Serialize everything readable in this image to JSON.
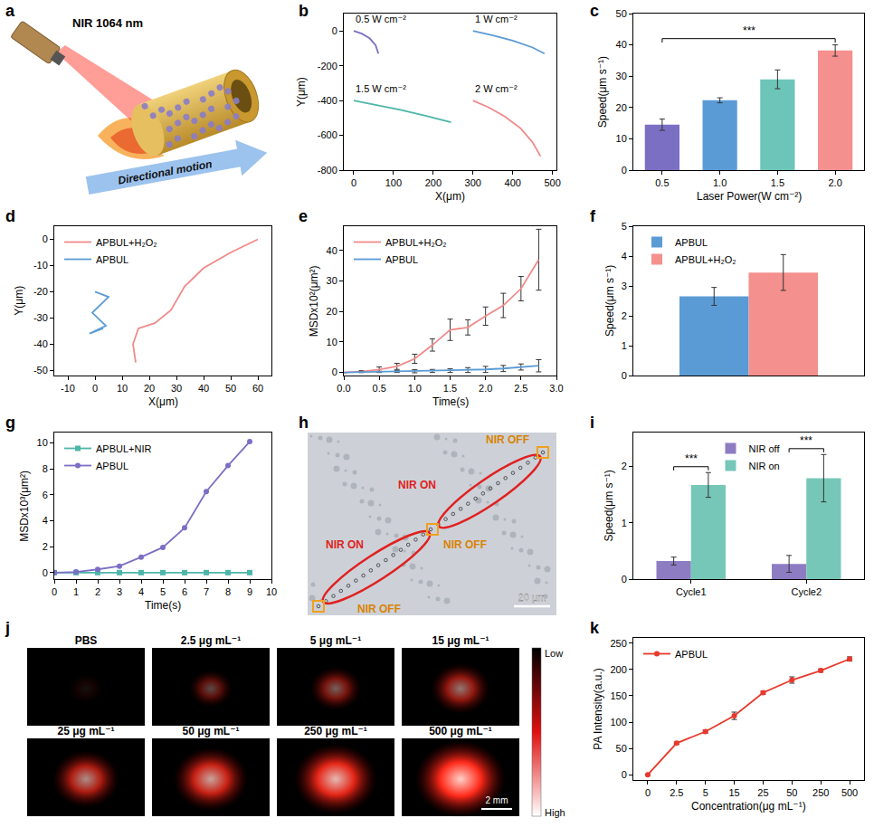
{
  "diagrams": {
    "a": {
      "panel": "a",
      "laser_label": "NIR 1064 nm",
      "arrow_label": "Directional motion"
    },
    "h": {
      "panel": "h",
      "segments": [
        "NIR OFF",
        "NIR ON",
        "NIR OFF",
        "NIR ON",
        "NIR OFF"
      ],
      "scale_bar": "20 μm"
    },
    "j": {
      "panel": "j",
      "images": [
        "PBS",
        "2.5 μg mL⁻¹",
        "5 μg mL⁻¹",
        "15 μg mL⁻¹",
        "25 μg mL⁻¹",
        "50 μg mL⁻¹",
        "250 μg mL⁻¹",
        "500 μg mL⁻¹"
      ],
      "colorbar": [
        "Low",
        "High"
      ],
      "scale_bar": "2 mm"
    }
  },
  "chart_data": [
    {
      "panel": "b",
      "type": "line",
      "x_label": "X(μm)",
      "y_label": "Y(μm)",
      "xlim": [
        -25,
        510
      ],
      "xticks": [
        0,
        100,
        200,
        300,
        400,
        500
      ],
      "ylim": [
        -800,
        100
      ],
      "yticks": [
        -800,
        -600,
        -400,
        -200,
        0
      ],
      "grid": false,
      "series": [
        {
          "name": "0.5 W cm⁻²",
          "color": "#7b6fc4",
          "x": [
            0,
            20,
            40,
            55,
            62
          ],
          "values": [
            0,
            -15,
            -42,
            -82,
            -130
          ]
        },
        {
          "name": "1 W cm⁻²",
          "color": "#5b9bd5",
          "x": [
            300,
            350,
            400,
            450,
            480
          ],
          "values": [
            0,
            -25,
            -55,
            -95,
            -130
          ]
        },
        {
          "name": "1.5 W cm⁻²",
          "color": "#4db6a8",
          "x": [
            0,
            60,
            120,
            180,
            245
          ],
          "values": [
            -400,
            -428,
            -455,
            -487,
            -525
          ]
        },
        {
          "name": "2 W cm⁻²",
          "color": "#f08a8a",
          "x": [
            300,
            340,
            380,
            420,
            450,
            470
          ],
          "values": [
            -400,
            -440,
            -492,
            -560,
            -640,
            -720
          ]
        }
      ]
    },
    {
      "panel": "c",
      "type": "bar",
      "x_label": "Laser Power(W cm⁻²)",
      "y_label": "Speed(μm s⁻¹)",
      "categories": [
        "0.5",
        "1.0",
        "1.5",
        "2.0"
      ],
      "values": [
        14.5,
        22.3,
        29.0,
        38.2
      ],
      "errors": [
        1.8,
        0.8,
        3.0,
        1.8
      ],
      "colors": [
        "#7b6fc4",
        "#5b9bd5",
        "#6cc5b8",
        "#f4908e"
      ],
      "ylim": [
        0,
        50
      ],
      "yticks": [
        0,
        10,
        20,
        30,
        40,
        50
      ],
      "grid": false,
      "annotations": [
        {
          "text": "***",
          "from": "0.5",
          "to": "2.0"
        }
      ]
    },
    {
      "panel": "d",
      "type": "line",
      "x_label": "X(μm)",
      "y_label": "Y(μm)",
      "xlim": [
        -15,
        65
      ],
      "xticks": [
        -10,
        0,
        10,
        20,
        30,
        40,
        50,
        60
      ],
      "ylim": [
        -52,
        5
      ],
      "yticks": [
        -50,
        -40,
        -30,
        -20,
        -10,
        0
      ],
      "grid": false,
      "legend": "upper left",
      "series": [
        {
          "name": "APBUL+H₂O₂",
          "color": "#f08a8a",
          "x": [
            60,
            50,
            40,
            33,
            28,
            22,
            16,
            14,
            15
          ],
          "values": [
            0,
            -5,
            -11,
            -18,
            -27,
            -32,
            -34,
            -40,
            -47
          ]
        },
        {
          "name": "APBUL",
          "color": "#5b9bd5",
          "x": [
            0,
            5,
            -1,
            4,
            -2,
            3
          ],
          "values": [
            -20,
            -22,
            -28,
            -33,
            -36,
            -34
          ]
        }
      ]
    },
    {
      "panel": "e",
      "type": "line",
      "x_label": "Time(s)",
      "y_label": "MSDx10²(μm²)",
      "x": [
        0,
        0.25,
        0.5,
        0.75,
        1.0,
        1.25,
        1.5,
        1.75,
        2.0,
        2.25,
        2.5,
        2.75
      ],
      "xlim": [
        0,
        3
      ],
      "xticks": [
        {
          "value": 0,
          "label": "0.0"
        },
        0.5,
        {
          "value": 1,
          "label": "1.0"
        },
        1.5,
        {
          "value": 2,
          "label": "2.0"
        },
        2.5,
        {
          "value": 3,
          "label": "3.0"
        }
      ],
      "ylim": [
        -1,
        48
      ],
      "yticks": [
        0,
        10,
        20,
        30,
        40
      ],
      "grid": false,
      "legend": "upper left",
      "series": [
        {
          "name": "APBUL+H₂O₂",
          "color": "#f08a8a",
          "values": [
            0,
            0.3,
            1.0,
            2.0,
            4.5,
            9.0,
            14.0,
            14.8,
            18.5,
            22.0,
            27.5,
            37.0
          ],
          "errors": [
            0,
            0.3,
            0.8,
            1.0,
            1.5,
            2.0,
            3.5,
            2.5,
            3.0,
            4.0,
            4.0,
            10.0
          ]
        },
        {
          "name": "APBUL",
          "color": "#5b9bd5",
          "values": [
            0,
            0.1,
            0.2,
            0.3,
            0.4,
            0.5,
            0.6,
            0.8,
            1.0,
            1.3,
            1.8,
            2.2
          ],
          "errors": [
            0,
            0.1,
            0.2,
            0.3,
            0.5,
            0.5,
            0.6,
            0.8,
            1.0,
            1.0,
            1.0,
            2.0
          ]
        }
      ]
    },
    {
      "panel": "f",
      "type": "bar",
      "y_label": "Speed(μm s⁻¹)",
      "ylim": [
        0,
        5
      ],
      "yticks": [
        0,
        1,
        2,
        3,
        4,
        5
      ],
      "grid": false,
      "tick_labels": "y",
      "legend": "upper left",
      "series": [
        {
          "name": "APBUL",
          "color": "#5b9bd5",
          "values": [
            2.65
          ],
          "errors": [
            0.3
          ]
        },
        {
          "name": "APBUL+H₂O₂",
          "color": "#f4908e",
          "values": [
            3.45
          ],
          "errors": [
            0.6
          ]
        }
      ]
    },
    {
      "panel": "g",
      "type": "line",
      "x_label": "Time(s)",
      "y_label": "MSDx10³(μm²)",
      "x": [
        0,
        1,
        2,
        3,
        4,
        5,
        6,
        7,
        8,
        9
      ],
      "xlim": [
        0,
        10
      ],
      "xticks": [
        0,
        1,
        2,
        3,
        4,
        5,
        6,
        7,
        8,
        9,
        10
      ],
      "ylim": [
        -0.5,
        10.8
      ],
      "yticks": [
        0,
        2,
        4,
        6,
        8,
        10
      ],
      "grid": false,
      "legend": "upper left",
      "series": [
        {
          "name": "APBUL+NIR",
          "color": "#4db6a8",
          "marker": "square",
          "values": [
            0,
            0,
            0,
            0,
            0,
            0,
            0,
            0,
            0,
            0
          ]
        },
        {
          "name": "APBUL",
          "color": "#7b6fc4",
          "marker": "circle",
          "values": [
            0,
            0.05,
            0.25,
            0.5,
            1.2,
            1.95,
            3.45,
            6.25,
            8.25,
            10.1
          ]
        }
      ]
    },
    {
      "panel": "i",
      "type": "bar",
      "y_label": "Speed(μm s⁻¹)",
      "categories": [
        "Cycle1",
        "Cycle2"
      ],
      "ylim": [
        0,
        2.6
      ],
      "yticks": [
        0,
        1,
        2
      ],
      "grid": false,
      "legend": "top",
      "series": [
        {
          "name": "NIR off",
          "color": "#8e7cc3",
          "values": [
            0.32,
            0.27
          ],
          "errors": [
            0.07,
            0.15
          ]
        },
        {
          "name": "NIR on",
          "color": "#76c7b7",
          "values": [
            1.67,
            1.79
          ],
          "errors": [
            0.22,
            0.42
          ]
        }
      ],
      "annotations": [
        {
          "text": "***",
          "category": "Cycle1"
        },
        {
          "text": "***",
          "category": "Cycle2"
        }
      ]
    },
    {
      "panel": "k",
      "type": "line",
      "x_label": "Concentration(μg mL⁻¹)",
      "y_label": "PA Intensity(a.u.)",
      "categories": [
        "0",
        "2.5",
        "5",
        "15",
        "25",
        "50",
        "250",
        "500"
      ],
      "ylim": [
        -10,
        260
      ],
      "yticks": [
        0,
        50,
        100,
        150,
        200,
        250
      ],
      "grid": false,
      "legend": "upper left",
      "series": [
        {
          "name": "APBUL",
          "color": "#e8392b",
          "marker": "circle",
          "values": [
            0,
            60,
            82,
            112,
            156,
            180,
            198,
            220
          ],
          "errors": [
            0,
            2,
            3,
            7,
            3,
            6,
            3,
            4
          ]
        }
      ]
    }
  ]
}
